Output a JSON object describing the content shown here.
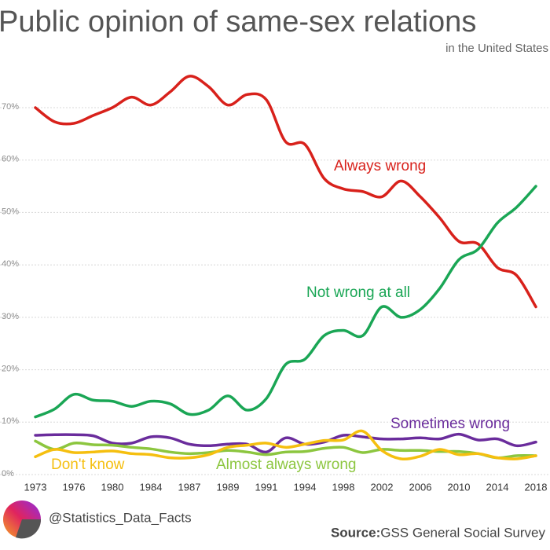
{
  "chart_data": {
    "type": "line",
    "title": "Public opinion of same-sex relations",
    "subtitle": "in the United States",
    "handle": "@Statistics_Data_Facts",
    "source_label": "Source:",
    "source": "GSS General Social Survey",
    "categories": [
      "1973",
      null,
      "1976",
      null,
      "1980",
      null,
      "1984",
      null,
      "1987",
      null,
      "1989",
      null,
      "1991",
      null,
      "1994",
      null,
      "1998",
      null,
      "2002",
      null,
      "2006",
      null,
      "2010",
      null,
      "2014",
      null,
      "2018"
    ],
    "ylim": [
      0,
      75
    ],
    "yticks": [
      {
        "value": 0,
        "label": "0%"
      },
      {
        "value": 10,
        "label": "10%"
      },
      {
        "value": 20,
        "label": "20%"
      },
      {
        "value": 30,
        "label": "30%"
      },
      {
        "value": 40,
        "label": "40%"
      },
      {
        "value": 50,
        "label": "50%"
      },
      {
        "value": 60,
        "label": "60%"
      },
      {
        "value": 70,
        "label": "70%"
      }
    ],
    "grid": true,
    "series": [
      {
        "name": "Always wrong",
        "color": "#d8211b",
        "values": [
          70,
          67.3,
          67,
          68.5,
          70,
          72,
          70.5,
          73,
          76,
          74,
          70.5,
          72.5,
          71.5,
          63.5,
          63,
          56.5,
          54.5,
          54,
          53,
          56,
          53,
          49,
          44.5,
          44,
          39.5,
          38,
          32
        ]
      },
      {
        "name": "Not wrong at all",
        "color": "#1aa655",
        "values": [
          11,
          12.5,
          15.3,
          14.2,
          14,
          13,
          14,
          13.5,
          11.5,
          12.3,
          15,
          12.3,
          14.5,
          21,
          22,
          26.5,
          27.5,
          26.5,
          32,
          30,
          31.5,
          35.5,
          41,
          43,
          48,
          51,
          55
        ]
      },
      {
        "name": "Sometimes wrong",
        "color": "#6a2c9c",
        "values": [
          7.5,
          7.6,
          7.6,
          7.4,
          6,
          6,
          7.2,
          7,
          5.8,
          5.5,
          5.8,
          5.8,
          4.3,
          7,
          5.8,
          6.2,
          7.5,
          7.2,
          6.8,
          6.8,
          7,
          6.8,
          7.7,
          6.6,
          6.8,
          5.5,
          6.2
        ]
      },
      {
        "name": "Almost always wrong",
        "color": "#8cc63f",
        "values": [
          6.4,
          4.8,
          6,
          5.7,
          5.6,
          5.2,
          4.9,
          4.3,
          4,
          4.2,
          4.6,
          4.3,
          3.8,
          4.3,
          4.4,
          5,
          5.2,
          4.2,
          4.8,
          4.6,
          4.6,
          4.4,
          4.4,
          4,
          3.2,
          3.6,
          3.6
        ]
      },
      {
        "name": "Don't know",
        "color": "#f5bf0f",
        "values": [
          3.4,
          4.8,
          4.2,
          4.3,
          4.5,
          4,
          3.8,
          3.2,
          3.2,
          3.8,
          5.2,
          5.6,
          6,
          5.2,
          5.8,
          6.5,
          6.6,
          8.3,
          4.6,
          3,
          3.5,
          4.8,
          3.8,
          4,
          3.2,
          3,
          3.6
        ]
      }
    ]
  }
}
